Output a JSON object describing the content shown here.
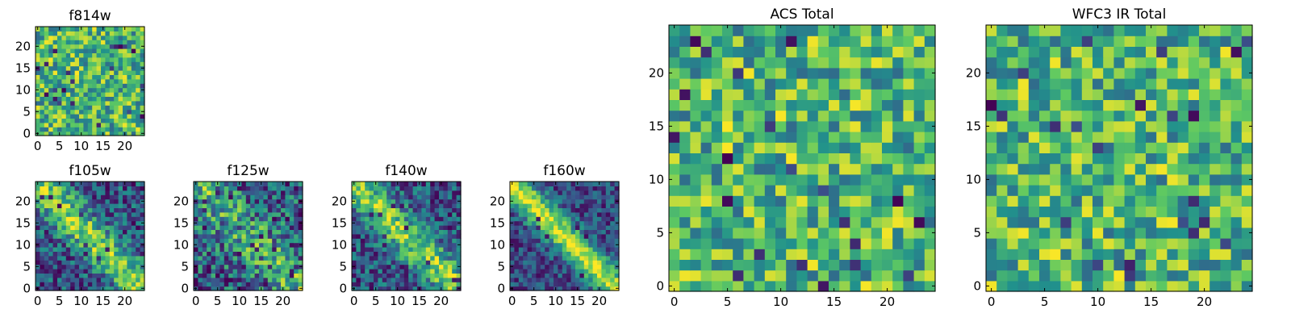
{
  "figure": {
    "description_text": "",
    "colormap": "viridis",
    "colormap_stops": [
      "#440154",
      "#3b528b",
      "#21918c",
      "#5ec962",
      "#fde725"
    ],
    "axis_color": "#000000",
    "background": "#ffffff"
  },
  "chart_data": [
    {
      "id": "f814w",
      "type": "heatmap",
      "title": "f814w",
      "grid_size": 25,
      "xlim": [
        -0.5,
        24.5
      ],
      "ylim": [
        -0.5,
        24.5
      ],
      "xticks": [
        0,
        5,
        10,
        15,
        20
      ],
      "yticks": [
        0,
        5,
        10,
        15,
        20
      ],
      "pattern": "noise",
      "seed": 11
    },
    {
      "id": "f105w",
      "type": "heatmap",
      "title": "f105w",
      "grid_size": 25,
      "xlim": [
        -0.5,
        24.5
      ],
      "ylim": [
        -0.5,
        24.5
      ],
      "xticks": [
        0,
        5,
        10,
        15,
        20
      ],
      "yticks": [
        0,
        5,
        10,
        15,
        20
      ],
      "pattern": "diagonal",
      "seed": 23
    },
    {
      "id": "f125w",
      "type": "heatmap",
      "title": "f125w",
      "grid_size": 25,
      "xlim": [
        -0.5,
        24.5
      ],
      "ylim": [
        -0.5,
        24.5
      ],
      "xticks": [
        0,
        5,
        10,
        15,
        20
      ],
      "yticks": [
        0,
        5,
        10,
        15,
        20
      ],
      "pattern": "diagonal-weak",
      "seed": 37
    },
    {
      "id": "f140w",
      "type": "heatmap",
      "title": "f140w",
      "grid_size": 25,
      "xlim": [
        -0.5,
        24.5
      ],
      "ylim": [
        -0.5,
        24.5
      ],
      "xticks": [
        0,
        5,
        10,
        15,
        20
      ],
      "yticks": [
        0,
        5,
        10,
        15,
        20
      ],
      "pattern": "diagonal",
      "seed": 41
    },
    {
      "id": "f160w",
      "type": "heatmap",
      "title": "f160w",
      "grid_size": 25,
      "xlim": [
        -0.5,
        24.5
      ],
      "ylim": [
        -0.5,
        24.5
      ],
      "xticks": [
        0,
        5,
        10,
        15,
        20
      ],
      "yticks": [
        0,
        5,
        10,
        15,
        20
      ],
      "pattern": "diagonal-strong",
      "seed": 53
    },
    {
      "id": "acs_total",
      "type": "heatmap",
      "title": "ACS Total",
      "grid_size": 25,
      "xlim": [
        -0.5,
        24.5
      ],
      "ylim": [
        -0.5,
        24.5
      ],
      "xticks": [
        0,
        5,
        10,
        15,
        20
      ],
      "yticks": [
        0,
        5,
        10,
        15,
        20
      ],
      "pattern": "noise",
      "seed": 67
    },
    {
      "id": "wfc3_ir_total",
      "type": "heatmap",
      "title": "WFC3 IR Total",
      "grid_size": 25,
      "xlim": [
        -0.5,
        24.5
      ],
      "ylim": [
        -0.5,
        24.5
      ],
      "xticks": [
        0,
        5,
        10,
        15,
        20
      ],
      "yticks": [
        0,
        5,
        10,
        15,
        20
      ],
      "pattern": "noise",
      "seed": 79
    }
  ]
}
